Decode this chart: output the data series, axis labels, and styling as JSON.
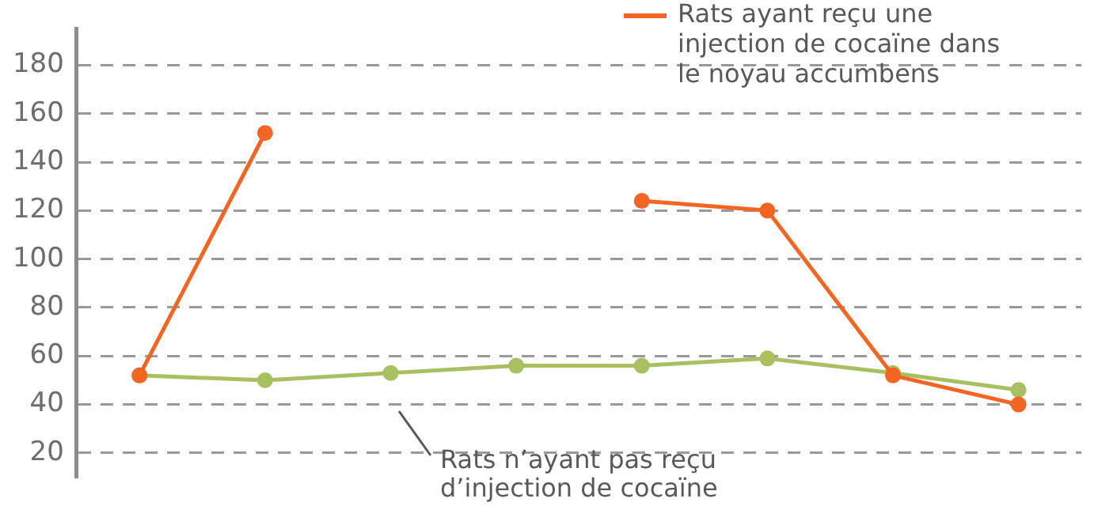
{
  "chart_data": {
    "type": "line",
    "categories": [
      null,
      null,
      null,
      null,
      null,
      null,
      null,
      null
    ],
    "series": [
      {
        "name": "Rats ayant reçu une injection de cocaïne dans le noyau accumbens",
        "color": "#f26522",
        "values": [
          52,
          152,
          null,
          null,
          124,
          120,
          52,
          40
        ]
      },
      {
        "name": "Rats n’ayant pas reçu d’injection de cocaïne",
        "color": "#a8c060",
        "values": [
          52,
          50,
          53,
          56,
          56,
          59,
          53,
          46
        ]
      }
    ],
    "ylim": [
      10,
      195
    ],
    "yticks": [
      20,
      40,
      60,
      80,
      100,
      120,
      140,
      160,
      180
    ],
    "grid": "y",
    "legend": "top right",
    "tick_labels": "y",
    "marker": "circle",
    "line_style": "solid"
  }
}
